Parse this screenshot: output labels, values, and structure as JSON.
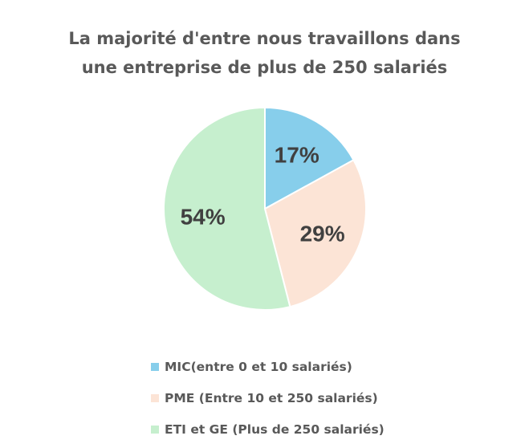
{
  "chart_data": {
    "type": "pie",
    "title_lines": [
      "La majorité d'entre nous travaillons dans",
      "une entreprise de plus de 250 salariés"
    ],
    "categories": [
      "MIC(entre 0 et 10 salariés)",
      "PME (Entre 10 et 250 salariés)",
      "ETI et GE (Plus de 250 salariés)"
    ],
    "values": [
      17,
      29,
      54
    ],
    "data_labels": [
      "17%",
      "29%",
      "54%"
    ],
    "colors": [
      "#87CEEB",
      "#FCE4D6",
      "#C6EFCE"
    ],
    "legend_position": "bottom"
  }
}
